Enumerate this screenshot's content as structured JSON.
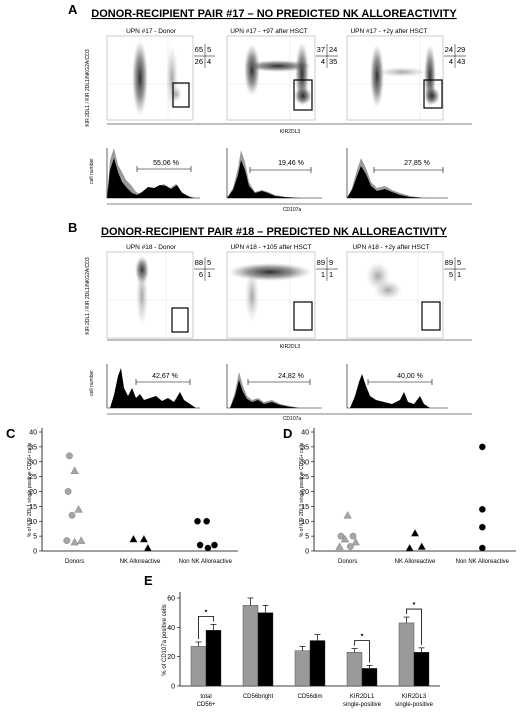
{
  "panel_a": {
    "letter": "A",
    "title": "DONOR-RECIPIENT  PAIR #17 – NO PREDICTED NK ALLOREACTIVITY",
    "ylabel": "KIR 2DL1 / KIR 2DL1/NKG2A/CD3",
    "xlabel": "KIR2DL3",
    "hist_ylabel": "cell number",
    "hist_xlabel": "CD107a",
    "plots": [
      {
        "subtitle": "UPN #17 - Donor",
        "q": [
          "65",
          "5",
          "26",
          "4"
        ],
        "pct": "55,06 %"
      },
      {
        "subtitle": "UPN #17 - +97 after HSCT",
        "q": [
          "37",
          "24",
          "4",
          "35"
        ],
        "pct": "19,46 %"
      },
      {
        "subtitle": "UPN #17 - +2y after HSCT",
        "q": [
          "24",
          "29",
          "4",
          "43"
        ],
        "pct": "27,85 %"
      }
    ]
  },
  "panel_b": {
    "letter": "B",
    "title": "DONOR-RECIPIENT  PAIR #18 – PREDICTED NK ALLOREACTIVITY",
    "ylabel": "KIR 2DL1 / KIR 2DL1/NKG2A/CD3",
    "xlabel": "KIR2DL3",
    "hist_ylabel": "cell number",
    "hist_xlabel": "CD107a",
    "plots": [
      {
        "subtitle": "UPN #18 - Donor",
        "q": [
          "88",
          "5",
          "6",
          "1"
        ],
        "pct": "42,67 %"
      },
      {
        "subtitle": "UPN #18 - +105 after HSCT",
        "q": [
          "89",
          "9",
          "1",
          "1"
        ],
        "pct": "24,82 %"
      },
      {
        "subtitle": "UPN #18 - +2y after HSCT",
        "q": [
          "89",
          "5",
          "5",
          "1"
        ],
        "pct": "40,00 %"
      }
    ]
  },
  "colors": {
    "gray": "#9a9a9a",
    "black": "#000000",
    "donor_dot": "#a6a6a6"
  },
  "chart_data": [
    {
      "id": "C",
      "type": "scatter",
      "letter": "C",
      "ylabel": "% of KIR 2DL1 single positive CD56+ cells",
      "categories": [
        "Donors",
        "NK Alloreactive",
        "Non NK Alloreactive"
      ],
      "ylim": [
        0,
        40
      ],
      "yticks": [
        "0",
        "5",
        "10",
        "15",
        "20",
        "25",
        "30",
        "35",
        "40"
      ],
      "points": [
        {
          "group": 0,
          "dx": -0.08,
          "y": 32,
          "shape": "circle",
          "color": "gray"
        },
        {
          "group": 0,
          "dx": 0.0,
          "y": 27,
          "shape": "triangle",
          "color": "gray"
        },
        {
          "group": 0,
          "dx": -0.1,
          "y": 20,
          "shape": "circle",
          "color": "gray"
        },
        {
          "group": 0,
          "dx": 0.06,
          "y": 14,
          "shape": "triangle",
          "color": "gray"
        },
        {
          "group": 0,
          "dx": -0.04,
          "y": 12,
          "shape": "circle",
          "color": "gray"
        },
        {
          "group": 0,
          "dx": -0.12,
          "y": 3.5,
          "shape": "circle",
          "color": "gray"
        },
        {
          "group": 0,
          "dx": 0.0,
          "y": 3,
          "shape": "triangle",
          "color": "gray"
        },
        {
          "group": 0,
          "dx": 0.1,
          "y": 3.5,
          "shape": "triangle",
          "color": "gray"
        },
        {
          "group": 1,
          "dx": -0.1,
          "y": 4,
          "shape": "triangle",
          "color": "black"
        },
        {
          "group": 1,
          "dx": 0.06,
          "y": 4,
          "shape": "triangle",
          "color": "black"
        },
        {
          "group": 1,
          "dx": 0.12,
          "y": 1,
          "shape": "triangle",
          "color": "black"
        },
        {
          "group": 2,
          "dx": -0.12,
          "y": 10,
          "shape": "circle",
          "color": "black"
        },
        {
          "group": 2,
          "dx": 0.02,
          "y": 10,
          "shape": "circle",
          "color": "black"
        },
        {
          "group": 2,
          "dx": -0.08,
          "y": 2,
          "shape": "circle",
          "color": "black"
        },
        {
          "group": 2,
          "dx": 0.04,
          "y": 1,
          "shape": "circle",
          "color": "black"
        },
        {
          "group": 2,
          "dx": 0.14,
          "y": 2,
          "shape": "circle",
          "color": "black"
        }
      ]
    },
    {
      "id": "D",
      "type": "scatter",
      "letter": "D",
      "ylabel": "% of KIR 2DL3 single positive CD56+ cells",
      "categories": [
        "Donors",
        "NK Alloreactive",
        "Non NK Alloreactive"
      ],
      "ylim": [
        0,
        40
      ],
      "yticks": [
        "0",
        "5",
        "10",
        "15",
        "20",
        "25",
        "30",
        "35",
        "40"
      ],
      "points": [
        {
          "group": 0,
          "dx": 0.0,
          "y": 12,
          "shape": "triangle",
          "color": "gray"
        },
        {
          "group": 0,
          "dx": -0.1,
          "y": 5,
          "shape": "circle",
          "color": "gray"
        },
        {
          "group": 0,
          "dx": 0.08,
          "y": 5,
          "shape": "circle",
          "color": "gray"
        },
        {
          "group": 0,
          "dx": -0.04,
          "y": 4,
          "shape": "triangle",
          "color": "gray"
        },
        {
          "group": 0,
          "dx": 0.12,
          "y": 3,
          "shape": "triangle",
          "color": "gray"
        },
        {
          "group": 0,
          "dx": -0.12,
          "y": 1.5,
          "shape": "triangle",
          "color": "gray"
        },
        {
          "group": 0,
          "dx": 0.04,
          "y": 1.5,
          "shape": "circle",
          "color": "gray"
        },
        {
          "group": 1,
          "dx": 0.0,
          "y": 6,
          "shape": "triangle",
          "color": "black"
        },
        {
          "group": 1,
          "dx": -0.08,
          "y": 1,
          "shape": "triangle",
          "color": "black"
        },
        {
          "group": 1,
          "dx": 0.1,
          "y": 1.5,
          "shape": "triangle",
          "color": "black"
        },
        {
          "group": 2,
          "dx": 0.0,
          "y": 35,
          "shape": "circle",
          "color": "black"
        },
        {
          "group": 2,
          "dx": 0.0,
          "y": 14,
          "shape": "circle",
          "color": "black"
        },
        {
          "group": 2,
          "dx": 0.0,
          "y": 8,
          "shape": "circle",
          "color": "black"
        },
        {
          "group": 2,
          "dx": 0.0,
          "y": 1,
          "shape": "circle",
          "color": "black"
        }
      ]
    },
    {
      "id": "E",
      "type": "bar",
      "letter": "E",
      "ylabel": "% of CD107a positive cells",
      "categories": [
        "total CD56+",
        "CD56bright",
        "CD56dim",
        "KIR2DL1 single-positive",
        "KIR2DL3 single-positive"
      ],
      "ylim": [
        0,
        60
      ],
      "yticks": [
        "0",
        "20",
        "40",
        "60"
      ],
      "series": [
        {
          "color": "gray",
          "values": [
            27,
            55,
            24,
            23,
            43
          ],
          "errors": [
            3,
            5,
            3,
            2.5,
            4
          ]
        },
        {
          "color": "black",
          "values": [
            38,
            50,
            31,
            12,
            23
          ],
          "errors": [
            4,
            5,
            4,
            2,
            3
          ]
        }
      ],
      "significance": [
        {
          "category": 0,
          "label": "*"
        },
        {
          "category": 3,
          "label": "*"
        },
        {
          "category": 4,
          "label": "*"
        }
      ]
    }
  ]
}
